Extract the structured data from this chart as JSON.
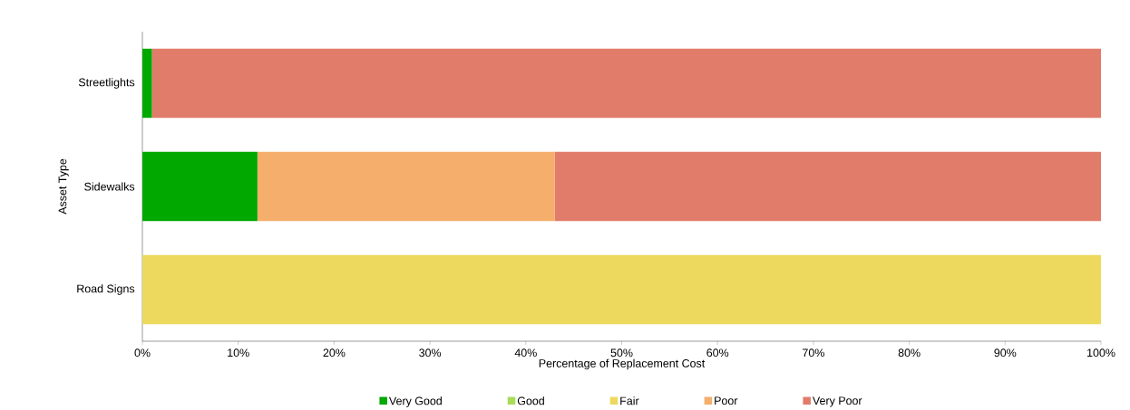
{
  "chart_data": {
    "type": "bar",
    "orientation": "horizontal",
    "stacked": true,
    "xlabel": "Percentage of Replacement Cost",
    "ylabel": "Asset Type",
    "categories": [
      "Streetlights",
      "Sidewalks",
      "Road Signs"
    ],
    "series": [
      {
        "name": "Very Good",
        "color": "#00a800",
        "values": [
          1,
          12,
          0
        ]
      },
      {
        "name": "Good",
        "color": "#a8dc5a",
        "values": [
          0,
          0,
          0
        ]
      },
      {
        "name": "Fair",
        "color": "#ecd95e",
        "values": [
          0,
          0,
          100
        ]
      },
      {
        "name": "Poor",
        "color": "#f5ae6b",
        "values": [
          0,
          31,
          0
        ]
      },
      {
        "name": "Very Poor",
        "color": "#e17c6b",
        "values": [
          99,
          57,
          0
        ]
      }
    ],
    "xlim": [
      0,
      100
    ],
    "xticks": [
      {
        "value": 0,
        "label": "0%"
      },
      {
        "value": 10,
        "label": "10%"
      },
      {
        "value": 20,
        "label": "20%"
      },
      {
        "value": 30,
        "label": "30%"
      },
      {
        "value": 40,
        "label": "40%"
      },
      {
        "value": 50,
        "label": "50%"
      },
      {
        "value": 60,
        "label": "60%"
      },
      {
        "value": 70,
        "label": "70%"
      },
      {
        "value": 80,
        "label": "80%"
      },
      {
        "value": 90,
        "label": "90%"
      },
      {
        "value": 100,
        "label": "100%"
      }
    ],
    "grid": false,
    "legend": "bottom"
  }
}
